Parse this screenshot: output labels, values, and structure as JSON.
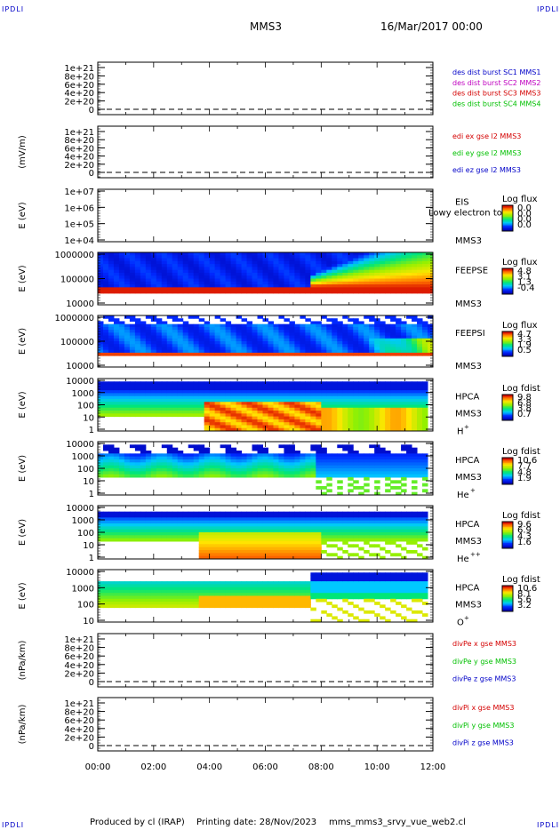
{
  "corners": {
    "tl": "IPDLI",
    "tr": "IPDLI",
    "bl": "IPDLI",
    "br": "IPDLI"
  },
  "header": {
    "title": "MMS3",
    "date": "16/Mar/2017 00:00"
  },
  "footer": {
    "produced": "Produced by cl (IRAP)",
    "printing": "Printing date: 28/Nov/2023",
    "script": "mms_mms3_srvy_vue_web2.cl"
  },
  "colors": {
    "frame": "#000000",
    "red": "#d40000",
    "magenta": "#c000c0",
    "green": "#00c000",
    "blue": "#0000c8"
  },
  "time_axis": {
    "ticks": [
      "00:00",
      "02:00",
      "04:00",
      "06:00",
      "08:00",
      "10:00",
      "12:00"
    ],
    "range_hours": [
      0,
      12
    ]
  },
  "chart_data": [
    {
      "type": "line",
      "ylabel": "",
      "yticks": [
        "1e+21",
        "8e+20",
        "6e+20",
        "4e+20",
        "2e+20",
        "0"
      ],
      "legend": [
        "des dist burst SC1 MMS1",
        "des dist burst SC2 MMS2",
        "des dist burst SC3 MMS3",
        "des dist burst SC4 MMS4"
      ],
      "legend_colors": [
        "#0000c8",
        "#c000c0",
        "#d40000",
        "#00c000"
      ],
      "series": []
    },
    {
      "type": "line",
      "ylabel": "(mV/m)",
      "yticks": [
        "1e+21",
        "8e+20",
        "6e+20",
        "4e+20",
        "2e+20",
        "0"
      ],
      "legend": [
        "edi ex gse l2 MMS3",
        "edi ey gse l2 MMS3",
        "edi ez gse l2 MMS3"
      ],
      "legend_colors": [
        "#d40000",
        "#00c000",
        "#0000c8"
      ],
      "series": []
    },
    {
      "type": "heatmap",
      "ylabel": "E (eV)",
      "yticks": [
        "1e+07",
        "1e+06",
        "1e+05",
        "1e+04"
      ],
      "labels": [
        "EIS",
        "MMS3"
      ],
      "overlay": "Lowy electron to",
      "cbar_title": "Log flux",
      "cbar_ticks": [
        "0.0",
        "0.0",
        "0.0",
        "0.0"
      ]
    },
    {
      "type": "heatmap",
      "ylabel": "E (eV)",
      "yticks": [
        "1000000",
        "100000",
        "10000"
      ],
      "labels": [
        "FEEPSE",
        "MMS3"
      ],
      "cbar_title": "Log flux",
      "cbar_ticks": [
        "4.8",
        "3.1",
        "1.3",
        "-0.4"
      ]
    },
    {
      "type": "heatmap",
      "ylabel": "E (eV)",
      "yticks": [
        "1000000",
        "100000",
        "10000"
      ],
      "labels": [
        "FEEPSI",
        "MMS3"
      ],
      "cbar_title": "Log flux",
      "cbar_ticks": [
        "4.7",
        "3.3",
        "1.9",
        "0.5"
      ]
    },
    {
      "type": "heatmap",
      "ylabel": "E (eV)",
      "yticks": [
        "10000",
        "1000",
        "100",
        "10",
        "1"
      ],
      "labels": [
        "HPCA",
        "MMS3",
        "H",
        "+"
      ],
      "cbar_title": "Log fdist",
      "cbar_ticks": [
        "9.8",
        "6.8",
        "3.8",
        "0.7"
      ]
    },
    {
      "type": "heatmap",
      "ylabel": "E (eV)",
      "yticks": [
        "10000",
        "1000",
        "100",
        "10",
        "1"
      ],
      "labels": [
        "HPCA",
        "MMS3",
        "He",
        "+"
      ],
      "cbar_title": "Log fdist",
      "cbar_ticks": [
        "10.6",
        "7.7",
        "4.8",
        "1.9"
      ]
    },
    {
      "type": "heatmap",
      "ylabel": "E (eV)",
      "yticks": [
        "10000",
        "1000",
        "100",
        "10",
        "1"
      ],
      "labels": [
        "HPCA",
        "MMS3",
        "He",
        "++"
      ],
      "cbar_title": "Log fdist",
      "cbar_ticks": [
        "9.6",
        "6.9",
        "4.3",
        "1.6"
      ]
    },
    {
      "type": "heatmap",
      "ylabel": "E (eV)",
      "yticks": [
        "10000",
        "1000",
        "100",
        "10"
      ],
      "labels": [
        "HPCA",
        "MMS3",
        "O",
        "+"
      ],
      "cbar_title": "Log fdist",
      "cbar_ticks": [
        "10.6",
        "8.1",
        "5.6",
        "3.2"
      ]
    },
    {
      "type": "line",
      "ylabel": "(nPa/km)",
      "yticks": [
        "1e+21",
        "8e+20",
        "6e+20",
        "4e+20",
        "2e+20",
        "0"
      ],
      "legend": [
        "divPe x gse MMS3",
        "divPe y gse MMS3",
        "divPe z gse MMS3"
      ],
      "legend_colors": [
        "#d40000",
        "#00c000",
        "#0000c8"
      ],
      "series": []
    },
    {
      "type": "line",
      "ylabel": "(nPa/km)",
      "yticks": [
        "1e+21",
        "8e+20",
        "6e+20",
        "4e+20",
        "2e+20",
        "0"
      ],
      "legend": [
        "divPi x gse MMS3",
        "divPi y gse MMS3",
        "divPi z gse MMS3"
      ],
      "legend_colors": [
        "#d40000",
        "#00c000",
        "#0000c8"
      ],
      "series": []
    }
  ]
}
